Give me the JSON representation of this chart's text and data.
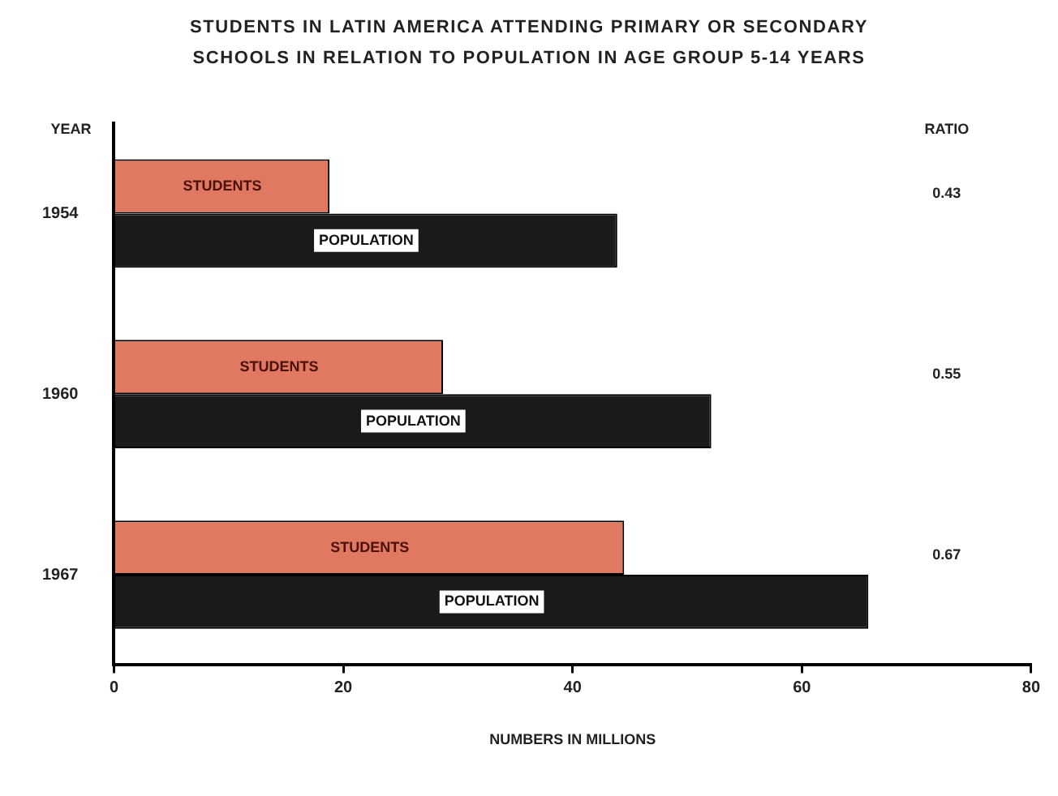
{
  "chart_data": {
    "type": "bar",
    "orientation": "horizontal",
    "title": "STUDENTS IN LATIN AMERICA ATTENDING PRIMARY OR SECONDARY SCHOOLS IN RELATION TO POPULATION IN AGE GROUP 5-14 YEARS",
    "xlabel": "NUMBERS IN MILLIONS",
    "ylabel": "YEAR",
    "categories": [
      "1954",
      "1960",
      "1967"
    ],
    "series": [
      {
        "name": "STUDENTS",
        "color": "#e07862",
        "values": [
          18.8,
          28.7,
          44.5
        ]
      },
      {
        "name": "POPULATION",
        "color": "#1a1a1a",
        "values": [
          43.9,
          52.1,
          65.8
        ]
      }
    ],
    "xlim": [
      0,
      80
    ],
    "xticks": [
      0,
      20,
      40,
      60,
      80
    ],
    "grid": false,
    "legend": false,
    "annotations": [
      "RATIO",
      "0.43",
      "0.55",
      "0.67"
    ]
  }
}
